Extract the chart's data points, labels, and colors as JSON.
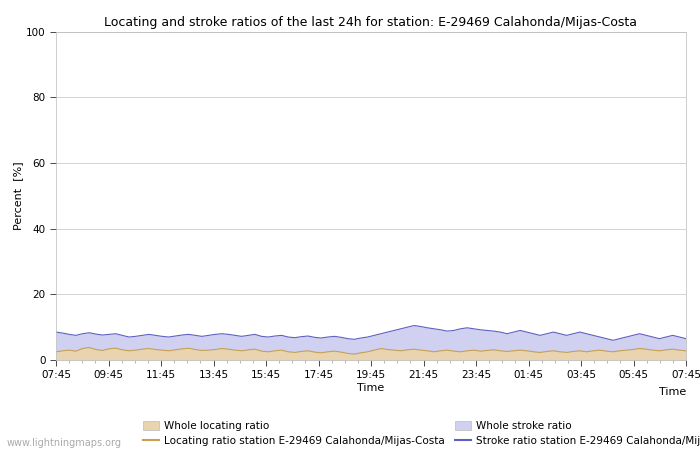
{
  "title": "Locating and stroke ratios of the last 24h for station: E-29469 Calahonda/Mijas-Costa",
  "xlabel": "Time",
  "ylabel": "Percent  [%]",
  "ylim": [
    0,
    100
  ],
  "yticks": [
    0,
    20,
    40,
    60,
    80,
    100
  ],
  "xtick_labels": [
    "07:45",
    "09:45",
    "11:45",
    "13:45",
    "15:45",
    "17:45",
    "19:45",
    "21:45",
    "23:45",
    "01:45",
    "03:45",
    "05:45",
    "07:45"
  ],
  "watermark": "www.lightningmaps.org",
  "background_color": "#ffffff",
  "plot_bg_color": "#ffffff",
  "grid_color": "#cccccc",
  "whole_locating_fill_color": "#e8d5b0",
  "whole_stroke_fill_color": "#d0d0f0",
  "locating_line_color": "#c8a050",
  "stroke_line_color": "#6060c0",
  "whole_locating_ratio": [
    2.5,
    2.8,
    3.0,
    2.7,
    3.5,
    3.8,
    3.2,
    2.9,
    3.4,
    3.6,
    3.1,
    2.8,
    3.0,
    3.3,
    3.5,
    3.2,
    3.0,
    2.8,
    3.1,
    3.4,
    3.6,
    3.2,
    2.9,
    3.0,
    3.2,
    3.5,
    3.3,
    3.0,
    2.8,
    3.1,
    3.3,
    2.7,
    2.5,
    2.8,
    3.0,
    2.5,
    2.3,
    2.6,
    2.8,
    2.4,
    2.2,
    2.5,
    2.7,
    2.4,
    2.0,
    1.8,
    2.2,
    2.5,
    3.0,
    3.5,
    3.2,
    3.0,
    2.8,
    3.1,
    3.3,
    3.0,
    2.8,
    2.5,
    2.8,
    3.0,
    2.7,
    2.5,
    2.8,
    3.0,
    2.7,
    2.9,
    3.1,
    2.8,
    2.6,
    2.8,
    3.0,
    2.8,
    2.5,
    2.3,
    2.6,
    2.8,
    2.5,
    2.3,
    2.6,
    2.8,
    2.5,
    2.8,
    3.0,
    2.7,
    2.5,
    2.8,
    3.0,
    3.2,
    3.5,
    3.3,
    3.0,
    2.8,
    3.1,
    3.3,
    3.0,
    2.8
  ],
  "whole_stroke_ratio": [
    8.5,
    8.2,
    7.8,
    7.5,
    8.0,
    8.3,
    7.9,
    7.6,
    7.8,
    8.0,
    7.5,
    7.0,
    7.2,
    7.5,
    7.8,
    7.5,
    7.2,
    7.0,
    7.3,
    7.6,
    7.8,
    7.5,
    7.2,
    7.5,
    7.8,
    8.0,
    7.8,
    7.5,
    7.2,
    7.5,
    7.8,
    7.2,
    7.0,
    7.3,
    7.5,
    7.0,
    6.8,
    7.1,
    7.3,
    6.9,
    6.7,
    7.0,
    7.2,
    6.9,
    6.5,
    6.3,
    6.7,
    7.0,
    7.5,
    8.0,
    8.5,
    9.0,
    9.5,
    10.0,
    10.5,
    10.2,
    9.8,
    9.5,
    9.2,
    8.8,
    9.0,
    9.5,
    9.8,
    9.5,
    9.2,
    9.0,
    8.8,
    8.5,
    8.0,
    8.5,
    9.0,
    8.5,
    8.0,
    7.5,
    8.0,
    8.5,
    8.0,
    7.5,
    8.0,
    8.5,
    8.0,
    7.5,
    7.0,
    6.5,
    6.0,
    6.5,
    7.0,
    7.5,
    8.0,
    7.5,
    7.0,
    6.5,
    7.0,
    7.5,
    7.0,
    6.5
  ],
  "locating_station_ratio": [
    2.5,
    2.8,
    3.0,
    2.7,
    3.5,
    3.8,
    3.2,
    2.9,
    3.4,
    3.6,
    3.1,
    2.8,
    3.0,
    3.3,
    3.5,
    3.2,
    3.0,
    2.8,
    3.1,
    3.4,
    3.6,
    3.2,
    2.9,
    3.0,
    3.2,
    3.5,
    3.3,
    3.0,
    2.8,
    3.1,
    3.3,
    2.7,
    2.5,
    2.8,
    3.0,
    2.5,
    2.3,
    2.6,
    2.8,
    2.4,
    2.2,
    2.5,
    2.7,
    2.4,
    2.0,
    1.8,
    2.2,
    2.5,
    3.0,
    3.5,
    3.2,
    3.0,
    2.8,
    3.1,
    3.3,
    3.0,
    2.8,
    2.5,
    2.8,
    3.0,
    2.7,
    2.5,
    2.8,
    3.0,
    2.7,
    2.9,
    3.1,
    2.8,
    2.6,
    2.8,
    3.0,
    2.8,
    2.5,
    2.3,
    2.6,
    2.8,
    2.5,
    2.3,
    2.6,
    2.8,
    2.5,
    2.8,
    3.0,
    2.7,
    2.5,
    2.8,
    3.0,
    3.2,
    3.5,
    3.3,
    3.0,
    2.8,
    3.1,
    3.3,
    3.0,
    2.8
  ],
  "stroke_station_ratio": [
    8.5,
    8.2,
    7.8,
    7.5,
    8.0,
    8.3,
    7.9,
    7.6,
    7.8,
    8.0,
    7.5,
    7.0,
    7.2,
    7.5,
    7.8,
    7.5,
    7.2,
    7.0,
    7.3,
    7.6,
    7.8,
    7.5,
    7.2,
    7.5,
    7.8,
    8.0,
    7.8,
    7.5,
    7.2,
    7.5,
    7.8,
    7.2,
    7.0,
    7.3,
    7.5,
    7.0,
    6.8,
    7.1,
    7.3,
    6.9,
    6.7,
    7.0,
    7.2,
    6.9,
    6.5,
    6.3,
    6.7,
    7.0,
    7.5,
    8.0,
    8.5,
    9.0,
    9.5,
    10.0,
    10.5,
    10.2,
    9.8,
    9.5,
    9.2,
    8.8,
    9.0,
    9.5,
    9.8,
    9.5,
    9.2,
    9.0,
    8.8,
    8.5,
    8.0,
    8.5,
    9.0,
    8.5,
    8.0,
    7.5,
    8.0,
    8.5,
    8.0,
    7.5,
    8.0,
    8.5,
    8.0,
    7.5,
    7.0,
    6.5,
    6.0,
    6.5,
    7.0,
    7.5,
    8.0,
    7.5,
    7.0,
    6.5,
    7.0,
    7.5,
    7.0,
    6.5
  ],
  "title_fontsize": 9,
  "axis_fontsize": 8,
  "tick_fontsize": 7.5,
  "legend_fontsize": 7.5
}
